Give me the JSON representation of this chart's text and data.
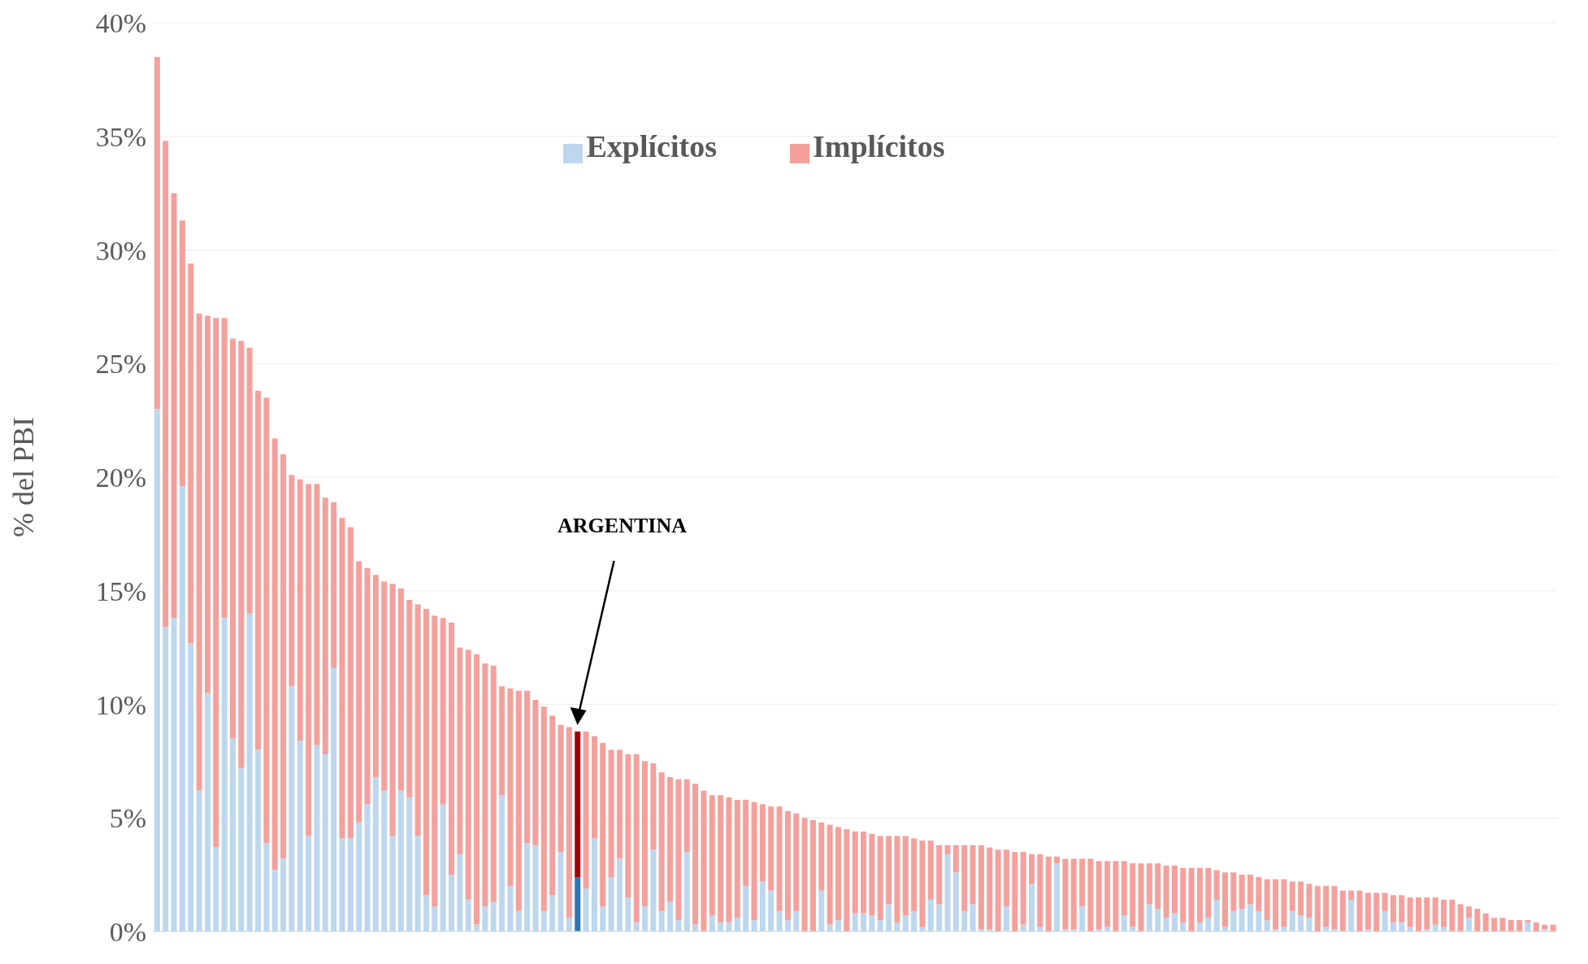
{
  "chart_data": {
    "type": "bar",
    "stacked": true,
    "ylabel": "% del PBI",
    "legend": "top",
    "grid": "y",
    "tick_labels": "y",
    "ylim": [
      0,
      40
    ],
    "yticks": [
      {
        "value": 0,
        "label": "0%"
      },
      {
        "value": 5,
        "label": "5%"
      },
      {
        "value": 10,
        "label": "10%"
      },
      {
        "value": 15,
        "label": "15%"
      },
      {
        "value": 20,
        "label": "20%"
      },
      {
        "value": 25,
        "label": "25%"
      },
      {
        "value": 30,
        "label": "30%"
      },
      {
        "value": 35,
        "label": "35%"
      },
      {
        "value": 40,
        "label": "40%"
      }
    ],
    "annotations": [
      "ARGENTINA"
    ],
    "categories": [
      null,
      null,
      null,
      null,
      null,
      null,
      null,
      null,
      null,
      null,
      null,
      null,
      null,
      null,
      null,
      null,
      null,
      null,
      null,
      null,
      null,
      null,
      null,
      null,
      null,
      null,
      null,
      null,
      null,
      null,
      null,
      null,
      null,
      null,
      null,
      null,
      null,
      null,
      null,
      null,
      null,
      null,
      null,
      null,
      null,
      null,
      null,
      null,
      null,
      null,
      null,
      null,
      null,
      null,
      null,
      null,
      null,
      null,
      null,
      null,
      null,
      null,
      null,
      null,
      null,
      null,
      null,
      null,
      null,
      null,
      null,
      null,
      null,
      null,
      null,
      null,
      null,
      null,
      null,
      null,
      null,
      null,
      null,
      null,
      null,
      null,
      null,
      null,
      null,
      null,
      null,
      null,
      null,
      null,
      null,
      null,
      null,
      null,
      null,
      null,
      null,
      null,
      null,
      null,
      null,
      null,
      null,
      null,
      null,
      null,
      null,
      null,
      null,
      null,
      null,
      null,
      null,
      null,
      null,
      null,
      null,
      null,
      null,
      null,
      null,
      null,
      null,
      null,
      null,
      null,
      null,
      null,
      null,
      null,
      null,
      null,
      null,
      null,
      null,
      null,
      null,
      null,
      null,
      null,
      null,
      null,
      null,
      null,
      null,
      null,
      null,
      null,
      null,
      null,
      null,
      null,
      null,
      null,
      null,
      null,
      null,
      null,
      null,
      null,
      null,
      null,
      null
    ],
    "series": [
      {
        "name": "Explícitos",
        "color": "#bdd7ee",
        "values": [
          23.0,
          13.4,
          13.8,
          19.6,
          12.7,
          6.2,
          10.5,
          3.7,
          13.8,
          8.5,
          7.2,
          14.0,
          8.0,
          3.9,
          2.7,
          3.2,
          10.8,
          8.4,
          4.2,
          8.2,
          7.8,
          11.6,
          4.1,
          4.1,
          4.8,
          5.6,
          6.8,
          6.2,
          4.2,
          6.2,
          5.9,
          4.2,
          1.6,
          1.1,
          5.6,
          2.5,
          3.4,
          1.4,
          0.3,
          1.1,
          1.3,
          6.0,
          2.0,
          0.9,
          3.9,
          3.8,
          0.9,
          1.6,
          3.5,
          0.6,
          2.4,
          1.9,
          4.1,
          1.1,
          2.4,
          3.2,
          1.5,
          0.4,
          1.1,
          3.6,
          0.9,
          1.3,
          0.5,
          3.5,
          0.3,
          0,
          0.7,
          0.4,
          0.4,
          0.6,
          2.0,
          0.5,
          2.2,
          1.8,
          0.9,
          0.5,
          0.9,
          0,
          0,
          1.8,
          0.3,
          0.5,
          0,
          0.8,
          0.8,
          0.7,
          0.5,
          1.2,
          0.4,
          0.7,
          0.9,
          0.2,
          1.4,
          1.2,
          3.4,
          2.6,
          0.9,
          1.2,
          0.1,
          0.1,
          0,
          1.1,
          0,
          0.3,
          2.1,
          0.2,
          0,
          3.0,
          0.1,
          0.1,
          1.1,
          0,
          0.1,
          0.2,
          0,
          0.7,
          0.2,
          0,
          1.2,
          1.0,
          0.6,
          0.8,
          0.4,
          0,
          0.4,
          0.6,
          1.4,
          0.2,
          0.9,
          1.0,
          1.2,
          0.9,
          0.5,
          0.1,
          0.2,
          0.9,
          0.7,
          0.6,
          0,
          0.2,
          0.1,
          0,
          1.4,
          0,
          0.1,
          0,
          0.9,
          0.4,
          0.4,
          0.2,
          0,
          0.1,
          0.3,
          0.2,
          0,
          0,
          0.6,
          0,
          0,
          0,
          0,
          0,
          0,
          0.4,
          0,
          0.1,
          0
        ],
        "colors": [
          "#bdd7ee",
          "#bdd7ee",
          "#bdd7ee",
          "#bdd7ee",
          "#bdd7ee",
          "#bdd7ee",
          "#bdd7ee",
          "#bdd7ee",
          "#bdd7ee",
          "#bdd7ee",
          "#bdd7ee",
          "#bdd7ee",
          "#bdd7ee",
          "#bdd7ee",
          "#bdd7ee",
          "#bdd7ee",
          "#bdd7ee",
          "#bdd7ee",
          "#bdd7ee",
          "#bdd7ee",
          "#bdd7ee",
          "#bdd7ee",
          "#bdd7ee",
          "#bdd7ee",
          "#bdd7ee",
          "#bdd7ee",
          "#bdd7ee",
          "#bdd7ee",
          "#bdd7ee",
          "#bdd7ee",
          "#bdd7ee",
          "#bdd7ee",
          "#bdd7ee",
          "#bdd7ee",
          "#bdd7ee",
          "#bdd7ee",
          "#bdd7ee",
          "#bdd7ee",
          "#bdd7ee",
          "#bdd7ee",
          "#bdd7ee",
          "#bdd7ee",
          "#bdd7ee",
          "#bdd7ee",
          "#bdd7ee",
          "#bdd7ee",
          "#bdd7ee",
          "#bdd7ee",
          "#bdd7ee",
          "#bdd7ee",
          "#2e75b6",
          "#bdd7ee",
          "#bdd7ee",
          "#bdd7ee",
          "#bdd7ee",
          "#bdd7ee",
          "#bdd7ee",
          "#bdd7ee",
          "#bdd7ee",
          "#bdd7ee",
          "#bdd7ee",
          "#bdd7ee",
          "#bdd7ee",
          "#bdd7ee",
          "#bdd7ee",
          "#bdd7ee",
          "#bdd7ee",
          "#bdd7ee",
          "#bdd7ee",
          "#bdd7ee",
          "#bdd7ee",
          "#bdd7ee",
          "#bdd7ee",
          "#bdd7ee",
          "#bdd7ee",
          "#bdd7ee",
          "#bdd7ee",
          "#bdd7ee",
          "#bdd7ee",
          "#bdd7ee",
          "#bdd7ee",
          "#bdd7ee",
          "#bdd7ee",
          "#bdd7ee",
          "#bdd7ee",
          "#bdd7ee",
          "#bdd7ee",
          "#bdd7ee",
          "#bdd7ee",
          "#bdd7ee",
          "#bdd7ee",
          "#bdd7ee",
          "#bdd7ee",
          "#bdd7ee",
          "#bdd7ee",
          "#bdd7ee",
          "#bdd7ee",
          "#bdd7ee",
          "#bdd7ee",
          "#bdd7ee",
          "#bdd7ee",
          "#bdd7ee",
          "#bdd7ee",
          "#bdd7ee",
          "#bdd7ee",
          "#bdd7ee",
          "#bdd7ee",
          "#bdd7ee",
          "#bdd7ee",
          "#bdd7ee",
          "#bdd7ee",
          "#bdd7ee",
          "#bdd7ee",
          "#bdd7ee",
          "#bdd7ee",
          "#bdd7ee",
          "#bdd7ee",
          "#bdd7ee",
          "#bdd7ee",
          "#bdd7ee",
          "#bdd7ee",
          "#bdd7ee",
          "#bdd7ee",
          "#bdd7ee",
          "#bdd7ee",
          "#bdd7ee",
          "#bdd7ee",
          "#bdd7ee",
          "#bdd7ee",
          "#bdd7ee",
          "#bdd7ee",
          "#bdd7ee",
          "#bdd7ee",
          "#bdd7ee",
          "#bdd7ee",
          "#bdd7ee",
          "#bdd7ee",
          "#bdd7ee",
          "#bdd7ee",
          "#bdd7ee",
          "#bdd7ee",
          "#bdd7ee",
          "#bdd7ee",
          "#bdd7ee",
          "#bdd7ee",
          "#bdd7ee",
          "#bdd7ee",
          "#bdd7ee",
          "#bdd7ee",
          "#bdd7ee",
          "#bdd7ee",
          "#bdd7ee",
          "#bdd7ee",
          "#bdd7ee",
          "#bdd7ee",
          "#bdd7ee",
          "#bdd7ee",
          "#bdd7ee",
          "#bdd7ee",
          "#bdd7ee",
          "#bdd7ee",
          "#bdd7ee",
          "#bdd7ee",
          "#bdd7ee",
          "#bdd7ee",
          "#bdd7ee",
          "#bdd7ee"
        ]
      },
      {
        "name": "Implícitos",
        "color": "#f4a09c",
        "values": [
          15.5,
          21.4,
          18.7,
          11.7,
          16.7,
          21.0,
          16.6,
          23.3,
          13.2,
          17.6,
          18.8,
          11.7,
          15.8,
          19.6,
          19.0,
          17.8,
          9.3,
          11.5,
          15.5,
          11.5,
          11.3,
          7.3,
          14.1,
          13.7,
          11.5,
          10.4,
          8.9,
          9.2,
          11.1,
          8.9,
          8.7,
          10.2,
          12.6,
          12.8,
          8.2,
          11.1,
          9.1,
          11.0,
          11.9,
          10.7,
          10.4,
          4.8,
          8.7,
          9.7,
          6.7,
          6.4,
          9.0,
          7.9,
          5.6,
          8.4,
          6.4,
          6.9,
          4.5,
          7.2,
          5.6,
          4.8,
          6.3,
          7.4,
          6.4,
          3.8,
          6.1,
          5.5,
          6.2,
          3.2,
          6.2,
          6.2,
          5.3,
          5.6,
          5.5,
          5.2,
          3.8,
          5.2,
          3.4,
          3.7,
          4.6,
          4.8,
          4.3,
          5.0,
          4.9,
          3.0,
          4.4,
          4.1,
          4.5,
          3.6,
          3.6,
          3.6,
          3.7,
          3.0,
          3.8,
          3.5,
          3.2,
          3.8,
          2.6,
          2.6,
          0.4,
          1.2,
          2.9,
          2.6,
          3.7,
          3.6,
          3.6,
          2.5,
          3.5,
          3.2,
          1.3,
          3.2,
          3.3,
          0.3,
          3.1,
          3.1,
          2.1,
          3.2,
          3.0,
          2.9,
          3.1,
          2.4,
          2.8,
          3.0,
          1.8,
          2.0,
          2.3,
          2.1,
          2.4,
          2.8,
          2.4,
          2.2,
          1.3,
          2.4,
          1.7,
          1.5,
          1.3,
          1.5,
          1.8,
          2.2,
          2.1,
          1.3,
          1.5,
          1.5,
          2.0,
          1.8,
          1.9,
          1.8,
          0.4,
          1.8,
          1.6,
          1.7,
          0.8,
          1.2,
          1.2,
          1.3,
          1.5,
          1.4,
          1.2,
          1.2,
          1.4,
          1.2,
          0.5,
          1.0,
          0.8,
          0.6,
          0.6,
          0.5,
          0.5,
          0.1,
          0.4,
          0.2,
          0.3
        ],
        "colors": [
          "#f4a09c",
          "#f4a09c",
          "#f4a09c",
          "#f4a09c",
          "#f4a09c",
          "#f4a09c",
          "#f4a09c",
          "#f4a09c",
          "#f4a09c",
          "#f4a09c",
          "#f4a09c",
          "#f4a09c",
          "#f4a09c",
          "#f4a09c",
          "#f4a09c",
          "#f4a09c",
          "#f4a09c",
          "#f4a09c",
          "#f4a09c",
          "#f4a09c",
          "#f4a09c",
          "#f4a09c",
          "#f4a09c",
          "#f4a09c",
          "#f4a09c",
          "#f4a09c",
          "#f4a09c",
          "#f4a09c",
          "#f4a09c",
          "#f4a09c",
          "#f4a09c",
          "#f4a09c",
          "#f4a09c",
          "#f4a09c",
          "#f4a09c",
          "#f4a09c",
          "#f4a09c",
          "#f4a09c",
          "#f4a09c",
          "#f4a09c",
          "#f4a09c",
          "#f4a09c",
          "#f4a09c",
          "#f4a09c",
          "#f4a09c",
          "#f4a09c",
          "#f4a09c",
          "#f4a09c",
          "#f4a09c",
          "#f4a09c",
          "#a00000",
          "#f4a09c",
          "#f4a09c",
          "#f4a09c",
          "#f4a09c",
          "#f4a09c",
          "#f4a09c",
          "#f4a09c",
          "#f4a09c",
          "#f4a09c",
          "#f4a09c",
          "#f4a09c",
          "#f4a09c",
          "#f4a09c",
          "#f4a09c",
          "#f4a09c",
          "#f4a09c",
          "#f4a09c",
          "#f4a09c",
          "#f4a09c",
          "#f4a09c",
          "#f4a09c",
          "#f4a09c",
          "#f4a09c",
          "#f4a09c",
          "#f4a09c",
          "#f4a09c",
          "#f4a09c",
          "#f4a09c",
          "#f4a09c",
          "#f4a09c",
          "#f4a09c",
          "#f4a09c",
          "#f4a09c",
          "#f4a09c",
          "#f4a09c",
          "#f4a09c",
          "#f4a09c",
          "#f4a09c",
          "#f4a09c",
          "#f4a09c",
          "#f4a09c",
          "#f4a09c",
          "#f4a09c",
          "#f4a09c",
          "#f4a09c",
          "#f4a09c",
          "#f4a09c",
          "#f4a09c",
          "#f4a09c",
          "#f4a09c",
          "#f4a09c",
          "#f4a09c",
          "#f4a09c",
          "#f4a09c",
          "#f4a09c",
          "#f4a09c",
          "#f4a09c",
          "#f4a09c",
          "#f4a09c",
          "#f4a09c",
          "#f4a09c",
          "#f4a09c",
          "#f4a09c",
          "#f4a09c",
          "#f4a09c",
          "#f4a09c",
          "#f4a09c",
          "#f4a09c",
          "#f4a09c",
          "#f4a09c",
          "#f4a09c",
          "#f4a09c",
          "#f4a09c",
          "#f4a09c",
          "#f4a09c",
          "#f4a09c",
          "#f4a09c",
          "#f4a09c",
          "#f4a09c",
          "#f4a09c",
          "#f4a09c",
          "#f4a09c",
          "#f4a09c",
          "#f4a09c",
          "#f4a09c",
          "#f4a09c",
          "#f4a09c",
          "#f4a09c",
          "#f4a09c",
          "#f4a09c",
          "#f4a09c",
          "#f4a09c",
          "#f4a09c",
          "#f4a09c",
          "#f4a09c",
          "#f4a09c",
          "#f4a09c",
          "#f4a09c",
          "#f4a09c",
          "#f4a09c",
          "#f4a09c",
          "#f4a09c",
          "#f4a09c",
          "#f4a09c",
          "#f4a09c",
          "#f4a09c",
          "#f4a09c",
          "#f4a09c",
          "#f4a09c",
          "#f4a09c",
          "#f4a09c",
          "#f4a09c",
          "#f4a09c",
          "#f4a09c",
          "#f4a09c",
          "#f4a09c"
        ]
      }
    ]
  }
}
